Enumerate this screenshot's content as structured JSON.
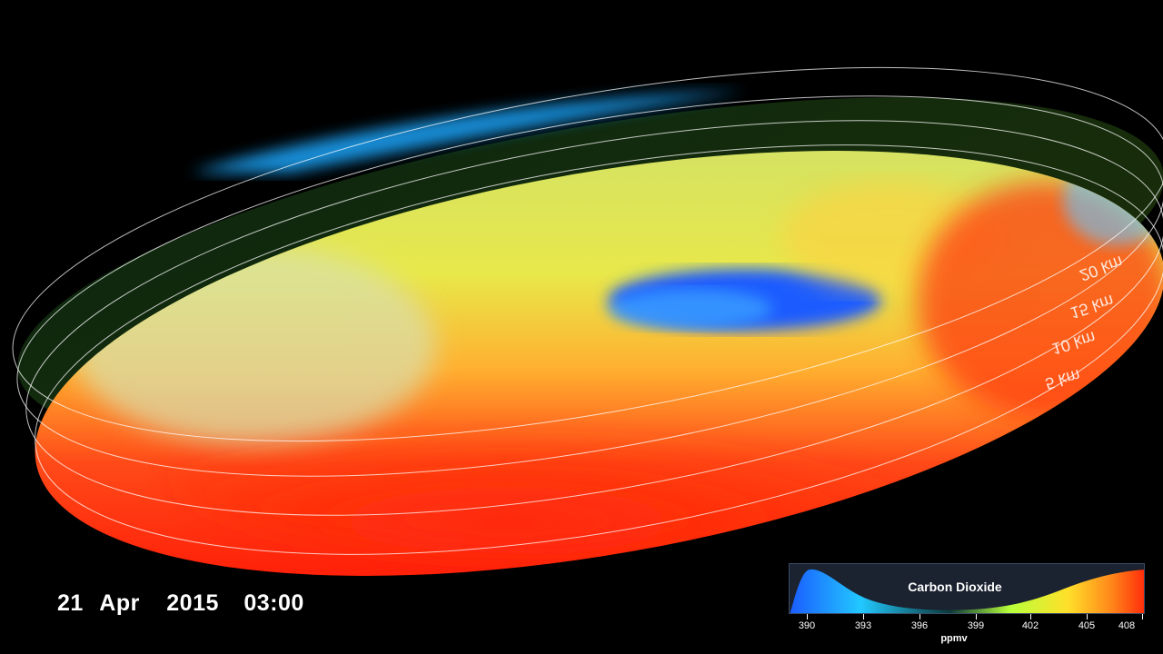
{
  "timestamp": {
    "day": "21",
    "month": "Apr",
    "year": "2015",
    "time": "03:00"
  },
  "altitude_labels": [
    "20 km",
    "15 km",
    "10 km",
    "5 km"
  ],
  "legend": {
    "title": "Carbon Dioxide",
    "unit": "ppmv",
    "ticks": [
      "390",
      "393",
      "396",
      "399",
      "402",
      "405",
      "408"
    ],
    "colors": [
      "#1a5cff",
      "#22c8ff",
      "#0b3a3a",
      "#b8ff3a",
      "#ffe02a",
      "#ff8a1a",
      "#ff2a0a"
    ]
  }
}
